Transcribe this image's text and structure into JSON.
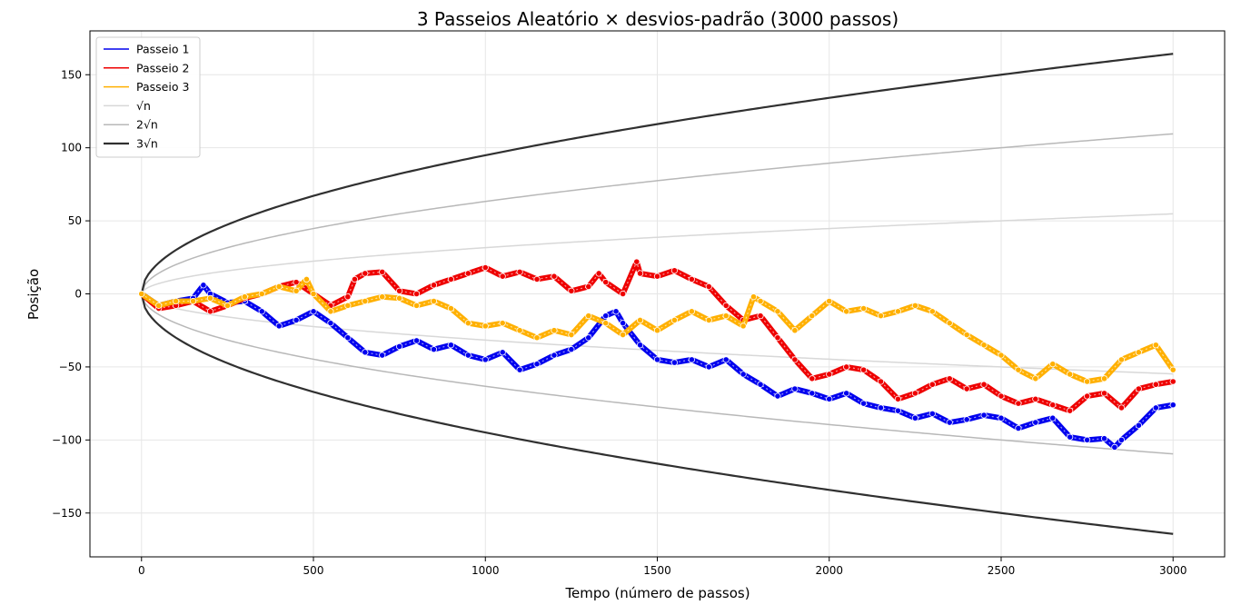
{
  "chart_data": {
    "type": "line",
    "title": "3 Passeios Aleatório × desvios-padrão (3000 passos)",
    "xlabel": "Tempo (número de passos)",
    "ylabel": "Posição",
    "xlim": [
      -150,
      3150
    ],
    "ylim": [
      -180,
      180
    ],
    "x_ticks": [
      0,
      500,
      1000,
      1500,
      2000,
      2500,
      3000
    ],
    "x_tick_labels": [
      "0",
      "500",
      "1000",
      "1500",
      "2000",
      "2500",
      "3000"
    ],
    "y_ticks": [
      -150,
      -100,
      -50,
      0,
      50,
      100,
      150
    ],
    "y_tick_labels": [
      "−150",
      "−100",
      "−50",
      "0",
      "50",
      "100",
      "150"
    ],
    "grid": true,
    "legend_position": "top-left",
    "series": [
      {
        "name": "Passeio 1",
        "color": "#0000ee",
        "kind": "random_walk",
        "x": [
          0,
          50,
          100,
          150,
          180,
          200,
          250,
          300,
          350,
          400,
          450,
          500,
          550,
          600,
          650,
          700,
          750,
          800,
          850,
          900,
          950,
          1000,
          1050,
          1100,
          1150,
          1200,
          1250,
          1300,
          1350,
          1380,
          1400,
          1450,
          1500,
          1550,
          1600,
          1650,
          1700,
          1750,
          1800,
          1850,
          1900,
          1950,
          2000,
          2050,
          2100,
          2150,
          2200,
          2250,
          2300,
          2350,
          2400,
          2450,
          2500,
          2550,
          2600,
          2650,
          2700,
          2750,
          2800,
          2830,
          2850,
          2900,
          2950,
          3000
        ],
        "y": [
          0,
          -8,
          -5,
          -3,
          6,
          0,
          -6,
          -5,
          -12,
          -22,
          -18,
          -12,
          -20,
          -30,
          -40,
          -42,
          -36,
          -32,
          -38,
          -35,
          -42,
          -45,
          -40,
          -52,
          -48,
          -42,
          -38,
          -30,
          -15,
          -12,
          -20,
          -35,
          -45,
          -47,
          -45,
          -50,
          -45,
          -55,
          -62,
          -70,
          -65,
          -68,
          -72,
          -68,
          -75,
          -78,
          -80,
          -85,
          -82,
          -88,
          -86,
          -83,
          -85,
          -92,
          -88,
          -85,
          -98,
          -100,
          -99,
          -105,
          -100,
          -90,
          -78,
          -76
        ]
      },
      {
        "name": "Passeio 2",
        "color": "#ee0000",
        "kind": "random_walk",
        "x": [
          0,
          50,
          100,
          150,
          200,
          250,
          300,
          350,
          400,
          450,
          500,
          550,
          600,
          620,
          650,
          700,
          750,
          800,
          850,
          900,
          950,
          1000,
          1050,
          1100,
          1150,
          1200,
          1250,
          1300,
          1330,
          1350,
          1400,
          1440,
          1450,
          1500,
          1550,
          1600,
          1650,
          1700,
          1750,
          1800,
          1850,
          1900,
          1950,
          2000,
          2050,
          2100,
          2150,
          2200,
          2250,
          2300,
          2350,
          2400,
          2450,
          2500,
          2550,
          2600,
          2650,
          2700,
          2750,
          2800,
          2850,
          2900,
          2950,
          3000
        ],
        "y": [
          0,
          -10,
          -8,
          -5,
          -12,
          -8,
          -3,
          0,
          5,
          8,
          0,
          -8,
          -2,
          10,
          14,
          15,
          2,
          0,
          6,
          10,
          14,
          18,
          12,
          15,
          10,
          12,
          2,
          5,
          14,
          8,
          0,
          22,
          14,
          12,
          16,
          10,
          5,
          -8,
          -18,
          -15,
          -30,
          -45,
          -58,
          -55,
          -50,
          -52,
          -60,
          -72,
          -68,
          -62,
          -58,
          -65,
          -62,
          -70,
          -75,
          -72,
          -76,
          -80,
          -70,
          -68,
          -78,
          -65,
          -62,
          -60
        ]
      },
      {
        "name": "Passeio 3",
        "color": "#ffb000",
        "kind": "random_walk",
        "x": [
          0,
          50,
          100,
          150,
          200,
          250,
          300,
          350,
          400,
          450,
          480,
          500,
          550,
          600,
          650,
          700,
          750,
          800,
          850,
          900,
          950,
          1000,
          1050,
          1100,
          1150,
          1200,
          1250,
          1300,
          1350,
          1400,
          1450,
          1500,
          1550,
          1600,
          1650,
          1700,
          1750,
          1780,
          1800,
          1850,
          1900,
          1950,
          2000,
          2050,
          2100,
          2150,
          2200,
          2250,
          2300,
          2350,
          2400,
          2450,
          2500,
          2550,
          2600,
          2650,
          2700,
          2750,
          2800,
          2850,
          2900,
          2950,
          3000
        ],
        "y": [
          0,
          -8,
          -5,
          -5,
          -3,
          -8,
          -2,
          0,
          5,
          2,
          10,
          0,
          -12,
          -8,
          -5,
          -2,
          -3,
          -8,
          -5,
          -10,
          -20,
          -22,
          -20,
          -25,
          -30,
          -25,
          -28,
          -15,
          -20,
          -28,
          -18,
          -25,
          -18,
          -12,
          -18,
          -15,
          -22,
          -2,
          -5,
          -12,
          -25,
          -15,
          -5,
          -12,
          -10,
          -15,
          -12,
          -8,
          -12,
          -20,
          -28,
          -35,
          -42,
          -52,
          -58,
          -48,
          -55,
          -60,
          -58,
          -45,
          -40,
          -35,
          -52
        ]
      },
      {
        "name": "√n",
        "color": "#d8d8d8",
        "kind": "sqrt",
        "factor": 1
      },
      {
        "name": "2√n",
        "color": "#b8b8b8",
        "kind": "sqrt",
        "factor": 2
      },
      {
        "name": "3√n",
        "color": "#303030",
        "kind": "sqrt",
        "factor": 3
      }
    ]
  }
}
